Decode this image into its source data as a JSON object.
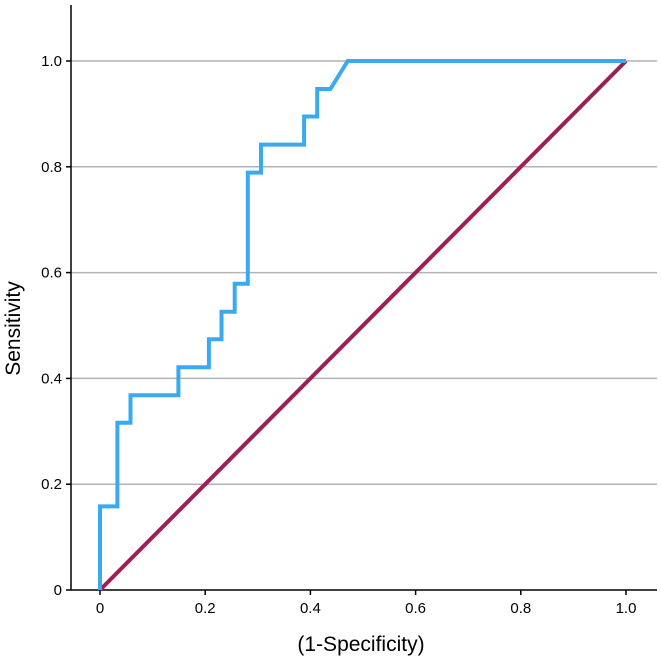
{
  "chart_data": {
    "type": "line",
    "title": "",
    "xlabel": "(1-Specificity)",
    "ylabel": "Sensitivity",
    "xlim": [
      0,
      1.0
    ],
    "ylim": [
      0,
      1.0
    ],
    "x_ticks": [
      {
        "value": 0,
        "label": "0"
      },
      {
        "value": 0.2,
        "label": "0.2"
      },
      {
        "value": 0.4,
        "label": "0.4"
      },
      {
        "value": 0.6,
        "label": "0.6"
      },
      {
        "value": 0.8,
        "label": "0.8"
      },
      {
        "value": 1.0,
        "label": "1.0"
      }
    ],
    "y_ticks": [
      {
        "value": 0,
        "label": "0"
      },
      {
        "value": 0.2,
        "label": "0.2"
      },
      {
        "value": 0.4,
        "label": "0.4"
      },
      {
        "value": 0.6,
        "label": "0.6"
      },
      {
        "value": 0.8,
        "label": "0.8"
      },
      {
        "value": 1.0,
        "label": "1.0"
      }
    ],
    "grid": "horizontal",
    "series": [
      {
        "color": "#3aaaf0",
        "points": [
          [
            0.0,
            0.0
          ],
          [
            0.0,
            0.158
          ],
          [
            0.033,
            0.158
          ],
          [
            0.033,
            0.316
          ],
          [
            0.058,
            0.316
          ],
          [
            0.058,
            0.368
          ],
          [
            0.149,
            0.368
          ],
          [
            0.149,
            0.421
          ],
          [
            0.174,
            0.421
          ],
          [
            0.174,
            0.421
          ],
          [
            0.207,
            0.421
          ],
          [
            0.207,
            0.474
          ],
          [
            0.231,
            0.474
          ],
          [
            0.231,
            0.526
          ],
          [
            0.256,
            0.526
          ],
          [
            0.256,
            0.579
          ],
          [
            0.281,
            0.579
          ],
          [
            0.281,
            0.789
          ],
          [
            0.306,
            0.789
          ],
          [
            0.306,
            0.842
          ],
          [
            0.388,
            0.842
          ],
          [
            0.388,
            0.895
          ],
          [
            0.413,
            0.895
          ],
          [
            0.413,
            0.947
          ],
          [
            0.438,
            0.947
          ],
          [
            0.471,
            1.0
          ],
          [
            1.0,
            1.0
          ]
        ]
      },
      {
        "color": "#9e1f55",
        "points": [
          [
            0.0,
            0.0
          ],
          [
            1.0,
            1.0
          ]
        ]
      }
    ]
  }
}
